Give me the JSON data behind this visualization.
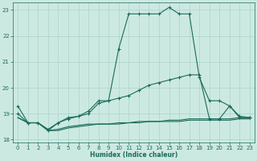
{
  "xlabel": "Humidex (Indice chaleur)",
  "ylabel": "",
  "xlim": [
    -0.5,
    23.5
  ],
  "ylim": [
    17.9,
    23.3
  ],
  "bg_color": "#cce9e1",
  "line_color": "#1a6b5a",
  "grid_color": "#aad4ca",
  "xticks": [
    0,
    1,
    2,
    3,
    4,
    5,
    6,
    7,
    8,
    9,
    10,
    11,
    12,
    13,
    14,
    15,
    16,
    17,
    18,
    19,
    20,
    21,
    22,
    23
  ],
  "yticks": [
    18,
    19,
    20,
    21,
    22,
    23
  ],
  "line1_x": [
    0,
    1,
    2,
    3,
    4,
    5,
    6,
    7,
    8,
    9,
    10,
    11,
    12,
    13,
    14,
    15,
    16,
    17,
    18,
    19,
    20,
    21,
    22,
    23
  ],
  "line1_y": [
    19.3,
    18.65,
    18.65,
    18.4,
    18.65,
    18.85,
    18.9,
    19.1,
    19.5,
    19.5,
    21.5,
    22.85,
    22.85,
    22.85,
    22.85,
    23.1,
    22.85,
    22.85,
    20.4,
    19.5,
    19.5,
    19.3,
    18.85,
    18.85
  ],
  "line2_x": [
    0,
    1,
    2,
    3,
    4,
    5,
    6,
    7,
    8,
    9,
    10,
    11,
    12,
    13,
    14,
    15,
    16,
    17,
    18,
    19,
    20,
    21,
    22,
    23
  ],
  "line2_y": [
    19.0,
    18.65,
    18.65,
    18.35,
    18.65,
    18.8,
    18.9,
    19.0,
    19.4,
    19.5,
    19.6,
    19.7,
    19.9,
    20.1,
    20.2,
    20.3,
    20.4,
    20.5,
    20.5,
    18.8,
    18.8,
    19.3,
    18.9,
    18.85
  ],
  "line3_x": [
    0,
    1,
    2,
    3,
    4,
    5,
    6,
    7,
    8,
    9,
    10,
    11,
    12,
    13,
    14,
    15,
    16,
    17,
    18,
    19,
    20,
    21,
    22,
    23
  ],
  "line3_y": [
    18.85,
    18.65,
    18.65,
    18.35,
    18.4,
    18.5,
    18.55,
    18.6,
    18.6,
    18.6,
    18.65,
    18.65,
    18.7,
    18.7,
    18.7,
    18.75,
    18.75,
    18.8,
    18.8,
    18.8,
    18.8,
    18.8,
    18.85,
    18.85
  ],
  "line4_x": [
    0,
    1,
    2,
    3,
    4,
    5,
    6,
    7,
    8,
    9,
    10,
    11,
    12,
    13,
    14,
    15,
    16,
    17,
    18,
    19,
    20,
    21,
    22,
    23
  ],
  "line4_y": [
    18.85,
    18.65,
    18.65,
    18.35,
    18.35,
    18.45,
    18.5,
    18.55,
    18.6,
    18.6,
    18.6,
    18.65,
    18.65,
    18.7,
    18.7,
    18.7,
    18.7,
    18.75,
    18.75,
    18.75,
    18.75,
    18.75,
    18.8,
    18.8
  ]
}
